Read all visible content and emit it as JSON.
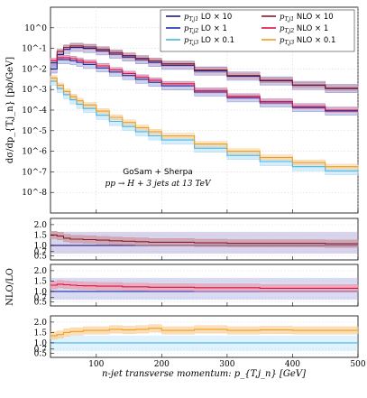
{
  "chart_data": {
    "type": "line",
    "y_label_main": "dσ/dp_{T,j_n} [pb/GeV]",
    "y_label_ratio": "NLO/LO",
    "x_label": "n-jet transverse momentum:  p_{T,j_n}  [GeV]",
    "annotation_line1": "GoSam + Sherpa",
    "annotation_line2": "pp → H + 3 jets at 13 TeV",
    "x_ticks": [
      "100",
      "200",
      "300",
      "400",
      "500"
    ],
    "xlim": [
      30,
      500
    ],
    "main_ylim_log10": [
      -9,
      1
    ],
    "main_ytick_labels": [
      "10^0",
      "10^-1",
      "10^-2",
      "10^-3",
      "10^-4",
      "10^-5",
      "10^-6",
      "10^-7",
      "10^-8"
    ],
    "ratio_ylim": [
      0.3,
      2.3
    ],
    "ratio_ytick_labels": [
      "0.5",
      "0.7",
      "1.0",
      "1.5",
      "2.0"
    ],
    "ratio_ytick_values": [
      0.5,
      0.7,
      1.0,
      1.5,
      2.0
    ],
    "legend": [
      {
        "jet": "j1",
        "order": "LO",
        "scale": "× 10",
        "color": "#1a1a8c"
      },
      {
        "jet": "j1",
        "order": "NLO",
        "scale": "× 10",
        "color": "#8b1a2a"
      },
      {
        "jet": "j2",
        "order": "LO",
        "scale": "× 1",
        "color": "#1f2fa6"
      },
      {
        "jet": "j2",
        "order": "NLO",
        "scale": "× 1",
        "color": "#e0103c"
      },
      {
        "jet": "j3",
        "order": "LO",
        "scale": "× 0.1",
        "color": "#45b4e8"
      },
      {
        "jet": "j3",
        "order": "NLO",
        "scale": "× 0.1",
        "color": "#f39c1e"
      }
    ],
    "x_bins": [
      30,
      40,
      50,
      60,
      70,
      80,
      100,
      120,
      140,
      160,
      180,
      200,
      250,
      300,
      350,
      400,
      450,
      500
    ],
    "series": [
      {
        "name": "p_{T,j1} LO × 10",
        "color": "#1a1a8c",
        "band": "#8e84c6",
        "log10_values": [
          -2.0,
          -1.3,
          -1.05,
          -0.95,
          -0.95,
          -1.0,
          -1.12,
          -1.28,
          -1.42,
          -1.55,
          -1.68,
          -1.82,
          -2.1,
          -2.35,
          -2.58,
          -2.8,
          -2.95
        ]
      },
      {
        "name": "p_{T,j1} NLO × 10",
        "color": "#8b1a2a",
        "band": "#c98a92",
        "log10_values": [
          -1.7,
          -1.15,
          -0.95,
          -0.88,
          -0.88,
          -0.93,
          -1.05,
          -1.2,
          -1.35,
          -1.48,
          -1.6,
          -1.75,
          -2.05,
          -2.32,
          -2.55,
          -2.78,
          -2.93
        ]
      },
      {
        "name": "p_{T,j2} LO × 1",
        "color": "#1f2fa6",
        "band": "#8f99d8",
        "log10_values": [
          -1.7,
          -1.55,
          -1.55,
          -1.6,
          -1.68,
          -1.78,
          -1.95,
          -2.15,
          -2.32,
          -2.5,
          -2.65,
          -2.82,
          -3.12,
          -3.4,
          -3.65,
          -3.88,
          -4.05
        ]
      },
      {
        "name": "p_{T,j2} NLO × 1",
        "color": "#e0103c",
        "band": "#ee8fa4",
        "log10_values": [
          -1.6,
          -1.45,
          -1.45,
          -1.5,
          -1.58,
          -1.68,
          -1.85,
          -2.05,
          -2.22,
          -2.4,
          -2.55,
          -2.72,
          -3.05,
          -3.33,
          -3.58,
          -3.82,
          -4.0
        ]
      },
      {
        "name": "p_{T,j3} LO × 0.1",
        "color": "#45b4e8",
        "band": "#a6daf4",
        "log10_values": [
          -2.6,
          -2.95,
          -3.25,
          -3.5,
          -3.72,
          -3.92,
          -4.25,
          -4.55,
          -4.8,
          -5.05,
          -5.25,
          -5.45,
          -5.85,
          -6.2,
          -6.5,
          -6.75,
          -6.95
        ]
      },
      {
        "name": "p_{T,j3} NLO × 0.1",
        "color": "#f39c1e",
        "band": "#f8c98a",
        "log10_values": [
          -2.45,
          -2.8,
          -3.1,
          -3.35,
          -3.55,
          -3.75,
          -4.05,
          -4.35,
          -4.6,
          -4.85,
          -5.05,
          -5.25,
          -5.65,
          -6.0,
          -6.3,
          -6.55,
          -6.75
        ]
      }
    ],
    "ratios": [
      {
        "color": "#8b1a2a",
        "band": "#c98a92",
        "values": [
          1.5,
          1.45,
          1.35,
          1.3,
          1.3,
          1.28,
          1.25,
          1.22,
          1.2,
          1.18,
          1.15,
          1.15,
          1.12,
          1.1,
          1.1,
          1.1,
          1.08
        ]
      },
      {
        "color": "#e0103c",
        "band": "#ee8fa4",
        "values": [
          1.3,
          1.35,
          1.32,
          1.3,
          1.28,
          1.27,
          1.25,
          1.25,
          1.22,
          1.22,
          1.2,
          1.2,
          1.18,
          1.18,
          1.15,
          1.15,
          1.15
        ]
      },
      {
        "color": "#f39c1e",
        "band": "#f8c98a",
        "values": [
          1.35,
          1.4,
          1.5,
          1.55,
          1.55,
          1.6,
          1.6,
          1.65,
          1.62,
          1.65,
          1.7,
          1.6,
          1.65,
          1.6,
          1.62,
          1.6,
          1.6
        ]
      }
    ]
  }
}
